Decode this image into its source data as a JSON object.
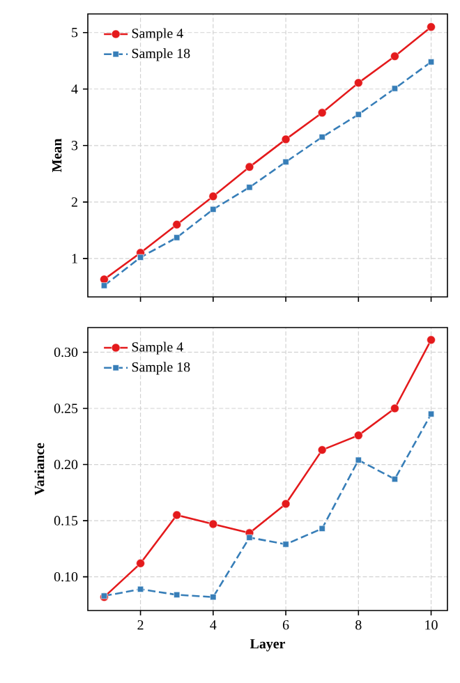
{
  "chart_data": [
    {
      "type": "line",
      "ylabel": "Mean",
      "x": [
        1,
        2,
        3,
        4,
        5,
        6,
        7,
        8,
        9,
        10
      ],
      "xlim": [
        0.55,
        10.45
      ],
      "ylim": [
        0.32,
        5.33
      ],
      "xticks": [
        2,
        4,
        6,
        8,
        10
      ],
      "yticks": [
        1,
        2,
        3,
        4,
        5
      ],
      "tick_labels": "y",
      "grid": true,
      "legend": "top left",
      "series": [
        {
          "name": "Sample 4",
          "color": "#e41a1c",
          "marker": "circle",
          "line_style": "solid",
          "values": [
            0.63,
            1.1,
            1.6,
            2.1,
            2.62,
            3.11,
            3.58,
            4.11,
            4.58,
            5.1
          ]
        },
        {
          "name": "Sample 18",
          "color": "#377eb8",
          "marker": "square",
          "line_style": "dashed",
          "values": [
            0.52,
            1.02,
            1.37,
            1.87,
            2.26,
            2.71,
            3.15,
            3.55,
            4.01,
            4.48
          ]
        }
      ]
    },
    {
      "type": "line",
      "xlabel": "Layer",
      "ylabel": "Variance",
      "x": [
        1,
        2,
        3,
        4,
        5,
        6,
        7,
        8,
        9,
        10
      ],
      "xlim": [
        0.55,
        10.45
      ],
      "ylim": [
        0.07,
        0.322
      ],
      "xticks": [
        2,
        4,
        6,
        8,
        10
      ],
      "yticks": [
        {
          "value": 0.1,
          "label": "0.10"
        },
        {
          "value": 0.15,
          "label": "0.15"
        },
        {
          "value": 0.2,
          "label": "0.20"
        },
        {
          "value": 0.25,
          "label": "0.25"
        },
        {
          "value": 0.3,
          "label": "0.30"
        }
      ],
      "grid": true,
      "legend": "top left",
      "series": [
        {
          "name": "Sample 4",
          "color": "#e41a1c",
          "marker": "circle",
          "line_style": "solid",
          "values": [
            0.082,
            0.112,
            0.155,
            0.147,
            0.139,
            0.165,
            0.213,
            0.226,
            0.25,
            0.311
          ]
        },
        {
          "name": "Sample 18",
          "color": "#377eb8",
          "marker": "square",
          "line_style": "dashed",
          "values": [
            0.083,
            0.089,
            0.084,
            0.082,
            0.135,
            0.129,
            0.143,
            0.204,
            0.187,
            0.245
          ]
        }
      ]
    }
  ]
}
